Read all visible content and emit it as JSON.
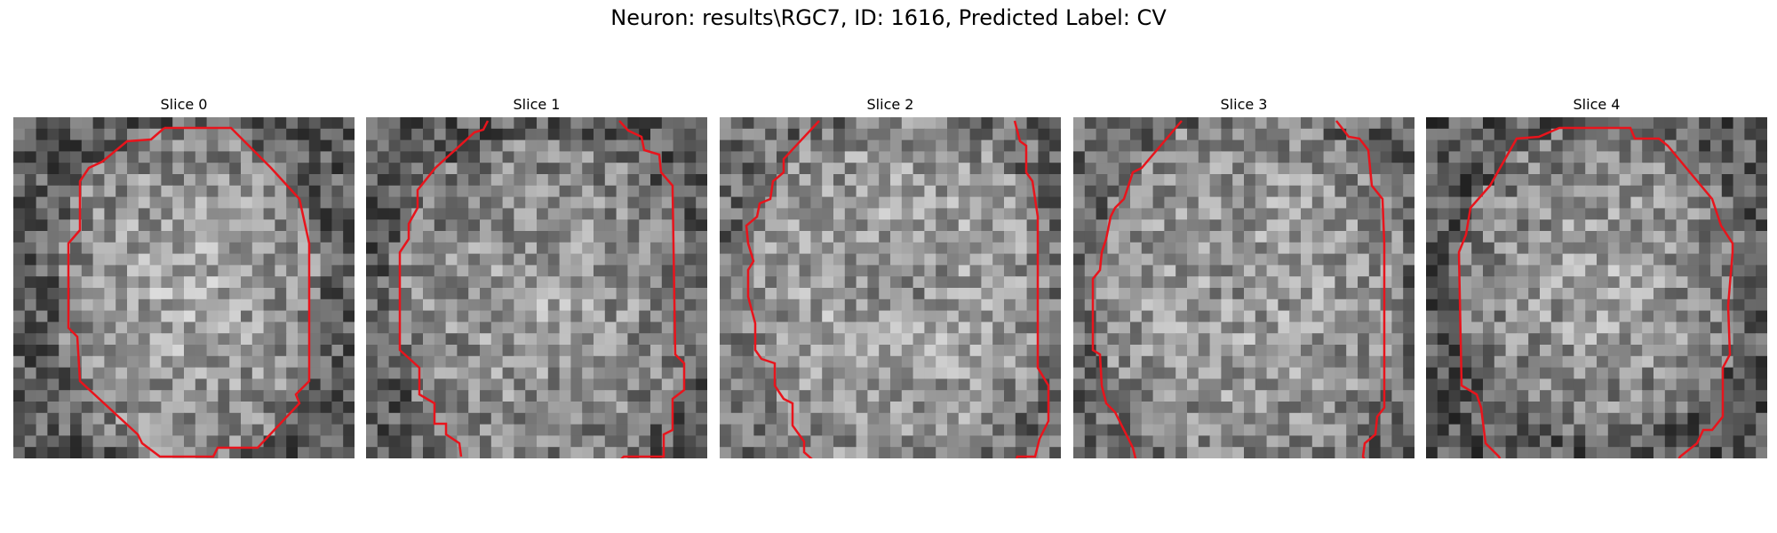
{
  "figure": {
    "title": "Neuron: results\\RGC7, ID: 1616, Predicted Label: CV"
  },
  "panels": [
    {
      "title": "Slice 0"
    },
    {
      "title": "Slice 1"
    },
    {
      "title": "Slice 2"
    },
    {
      "title": "Slice 3"
    },
    {
      "title": "Slice 4"
    }
  ],
  "colors": {
    "contour": "#e8141c",
    "colormap": "gray"
  }
}
